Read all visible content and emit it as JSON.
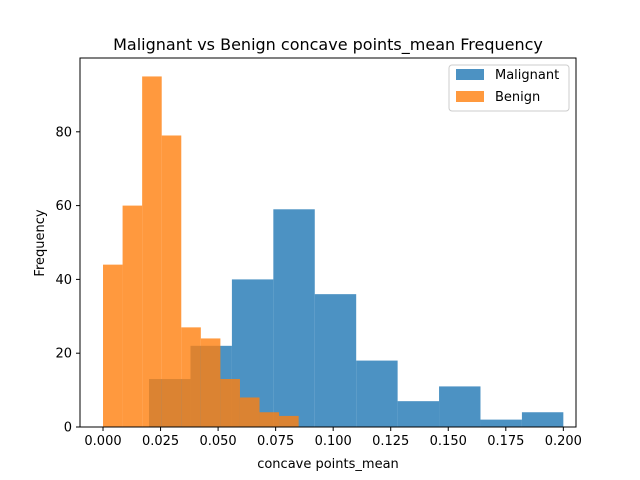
{
  "chart_data": {
    "type": "histogram",
    "title": "Malignant vs Benign concave points_mean Frequency",
    "xlabel": "concave points_mean",
    "ylabel": "Frequency",
    "xlim": [
      -0.01,
      0.2055
    ],
    "ylim": [
      0,
      100
    ],
    "xticks": [
      0.0,
      0.025,
      0.05,
      0.075,
      0.1,
      0.125,
      0.15,
      0.175,
      0.2
    ],
    "xtick_labels": [
      "0.000",
      "0.025",
      "0.050",
      "0.075",
      "0.100",
      "0.125",
      "0.150",
      "0.175",
      "0.200"
    ],
    "yticks": [
      0,
      20,
      40,
      60,
      80
    ],
    "yticks_labels": [
      "0",
      "20",
      "40",
      "60",
      "80"
    ],
    "grid": false,
    "legend_position": "top-right",
    "series": [
      {
        "name": "Malignant",
        "color": "#1f77b4",
        "alpha": 0.8,
        "bin_edges": [
          0.02,
          0.038,
          0.056,
          0.074,
          0.092,
          0.11,
          0.128,
          0.146,
          0.164,
          0.182,
          0.2
        ],
        "counts": [
          13,
          22,
          40,
          59,
          36,
          18,
          7,
          11,
          2,
          4
        ]
      },
      {
        "name": "Benign",
        "color": "#ff7f0e",
        "alpha": 0.8,
        "bin_edges": [
          0.0,
          0.0085,
          0.017,
          0.0255,
          0.034,
          0.0425,
          0.051,
          0.0595,
          0.068,
          0.0765,
          0.085
        ],
        "counts": [
          44,
          60,
          95,
          79,
          27,
          24,
          13,
          8,
          4,
          3
        ]
      }
    ]
  }
}
